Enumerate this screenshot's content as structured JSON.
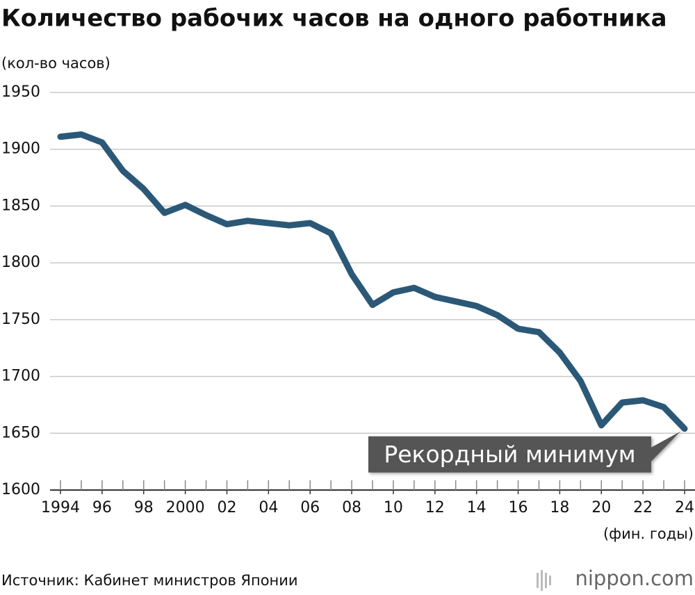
{
  "chart_data": {
    "type": "line",
    "title": "Количество рабочих часов на одного работника",
    "y_label": "(кол-во часов)",
    "x_label": "(фин. годы)",
    "annotation": "Рекордный минимум",
    "source": "Источник: Кабинет министров Японии",
    "logo": "nippon.com",
    "x": [
      1994,
      1995,
      1996,
      1997,
      1998,
      1999,
      2000,
      2001,
      2002,
      2003,
      2004,
      2005,
      2006,
      2007,
      2008,
      2009,
      2010,
      2011,
      2012,
      2013,
      2014,
      2015,
      2016,
      2017,
      2018,
      2019,
      2020,
      2021,
      2022,
      2023,
      2024
    ],
    "series": [
      {
        "name": "Количество рабочих часов",
        "color": "#2b5877",
        "values": [
          1911,
          1913,
          1906,
          1881,
          1865,
          1844,
          1851,
          1842,
          1834,
          1837,
          1835,
          1833,
          1835,
          1826,
          1790,
          1763,
          1774,
          1778,
          1770,
          1766,
          1762,
          1754,
          1742,
          1739,
          1721,
          1696,
          1657,
          1677,
          1679,
          1673,
          1654
        ]
      }
    ],
    "xlim": [
      1994,
      2024
    ],
    "xticks": [
      1994,
      {
        "value": 1996,
        "label": "96"
      },
      {
        "value": 1998,
        "label": "98"
      },
      2000,
      {
        "value": 2002,
        "label": "02"
      },
      {
        "value": 2004,
        "label": "04"
      },
      {
        "value": 2006,
        "label": "06"
      },
      {
        "value": 2008,
        "label": "08"
      },
      {
        "value": 2010,
        "label": "10"
      },
      {
        "value": 2012,
        "label": "12"
      },
      {
        "value": 2014,
        "label": "14"
      },
      {
        "value": 2016,
        "label": "16"
      },
      {
        "value": 2018,
        "label": "18"
      },
      {
        "value": 2020,
        "label": "20"
      },
      {
        "value": 2022,
        "label": "22"
      },
      {
        "value": 2024,
        "label": "24"
      }
    ],
    "ylim": [
      1600,
      1950
    ],
    "yticks": [
      1600,
      1650,
      1700,
      1750,
      1800,
      1850,
      1900,
      1950
    ],
    "grid": true
  }
}
